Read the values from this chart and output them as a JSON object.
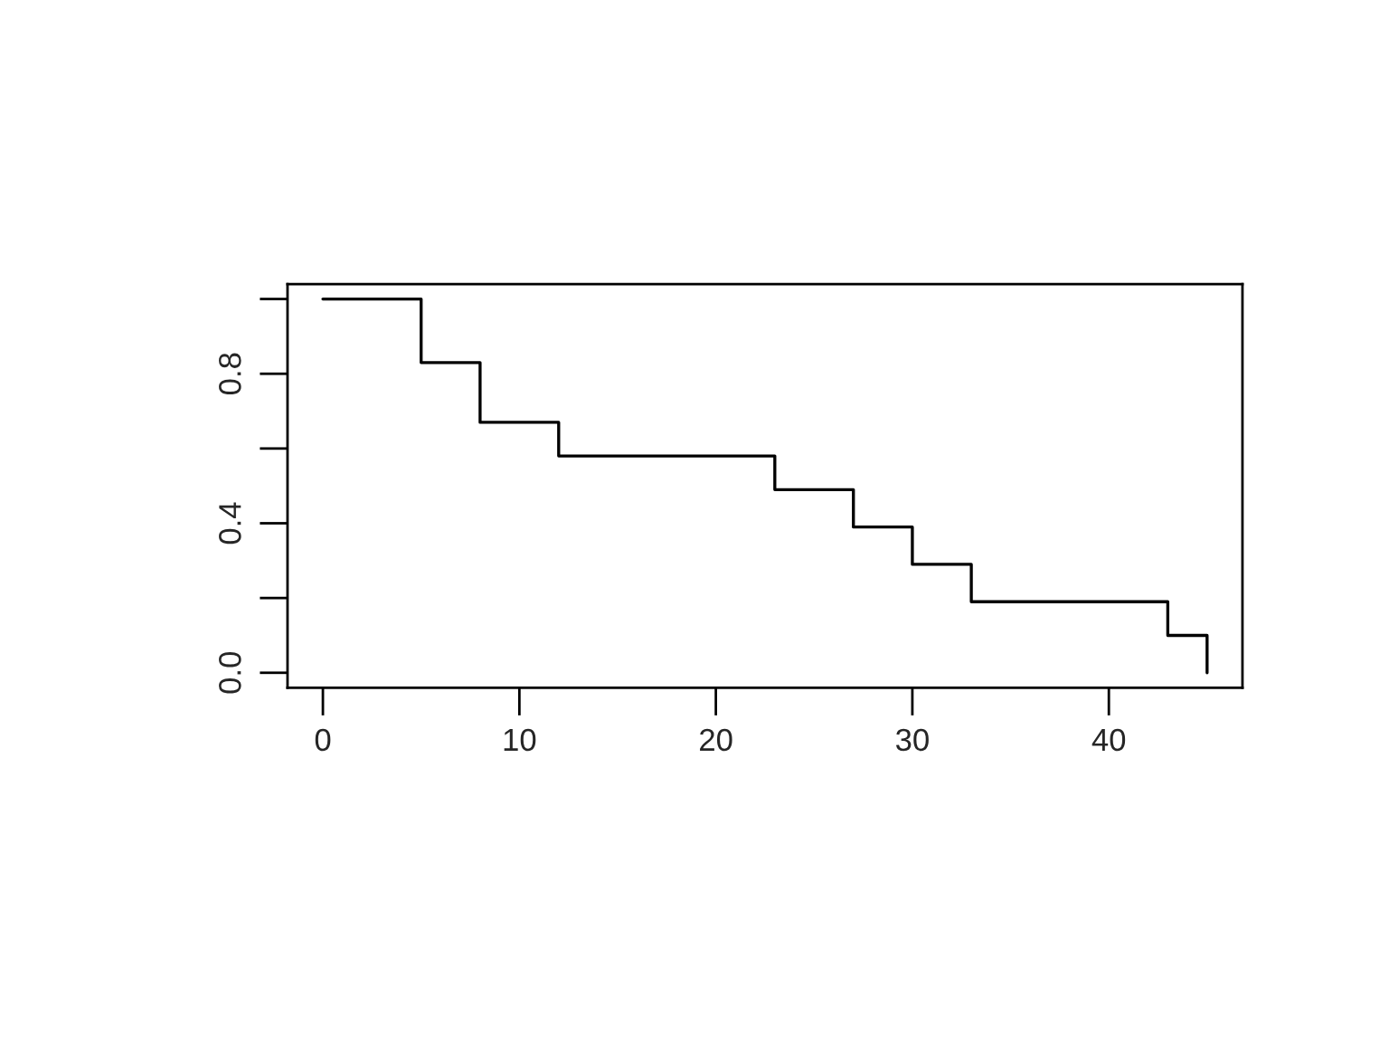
{
  "chart_data": {
    "type": "step",
    "series": [
      {
        "color": "#000000",
        "x": [
          0,
          5,
          8,
          12,
          23,
          27,
          30,
          33,
          43,
          45
        ],
        "values": [
          1.0,
          0.83,
          0.67,
          0.58,
          0.49,
          0.39,
          0.29,
          0.19,
          0.1,
          0.0
        ]
      }
    ],
    "xlim": [
      -1.8,
      46.8
    ],
    "ylim": [
      -0.04,
      1.04
    ],
    "xticks": [
      0,
      10,
      20,
      30,
      40
    ],
    "yticks": [
      {
        "value": 0,
        "label": "0.0"
      },
      {
        "value": 0.2,
        "label": null
      },
      {
        "value": 0.4,
        "label": "0.4"
      },
      {
        "value": 0.6,
        "label": null
      },
      {
        "value": 0.8,
        "label": "0.8"
      },
      {
        "value": 1.0,
        "label": null
      }
    ],
    "grid": false,
    "legend": false,
    "line_style": "solid"
  }
}
